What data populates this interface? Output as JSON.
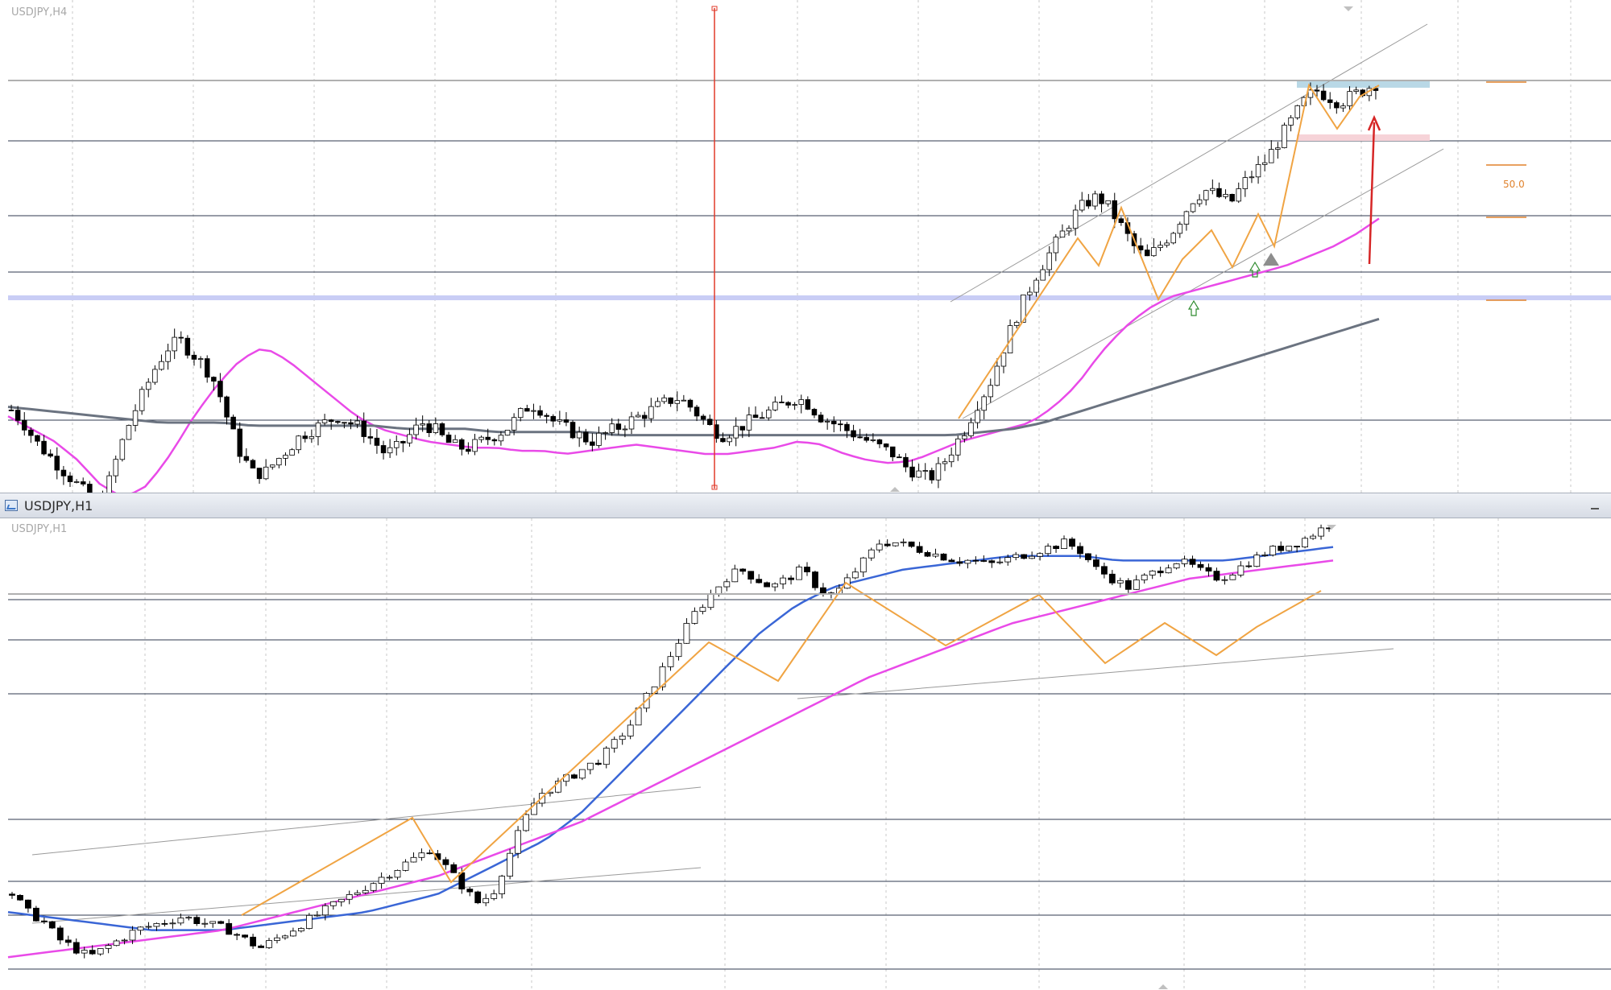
{
  "window": {
    "h4_chart_label": "USDJPY,H4",
    "h1_title": "USDJPY,H1",
    "h1_chart_label": "USDJPY,H1"
  },
  "fib": {
    "label_50": "50.0"
  },
  "colors": {
    "candle_up": "#ffffff",
    "candle_down": "#000000",
    "ma_fast": "#e94ae8",
    "ma_slow_h4": "#6b7380",
    "ma_blue_h1": "#3a66d6",
    "zigzag": "#f0a443",
    "vertical_marker": "#e03a2a",
    "arrow": "#d62626",
    "fib": "#e0822c",
    "support_band": "#c9cdf5",
    "resistance_band": "#b9d8e6",
    "target_band": "#f6d3d8",
    "channel": "#9a9a9a",
    "level": "#2f3a4f",
    "grid": "#c8c8c8",
    "entry_arrow": "#2e8b2e"
  },
  "icons": [
    "chart-window-icon",
    "minimize-icon",
    "up-arrow-icon",
    "triangle-marker-icon"
  ],
  "chart_data": [
    {
      "type": "candlestick",
      "title": "USDJPY,H4",
      "series": [
        {
          "name": "fast_ma",
          "shape": [
            0.52,
            0.48,
            0.44,
            0.38,
            0.3,
            0.26,
            0.3,
            0.4,
            0.52,
            0.62,
            0.7,
            0.74,
            0.7,
            0.64,
            0.58,
            0.52,
            0.48,
            0.46,
            0.44,
            0.43,
            0.42,
            0.42,
            0.41,
            0.41,
            0.4,
            0.41,
            0.42,
            0.43,
            0.42,
            0.41,
            0.4,
            0.4,
            0.41,
            0.42,
            0.44,
            0.43,
            0.4,
            0.38,
            0.37,
            0.38,
            0.41,
            0.44,
            0.46,
            0.48,
            0.5,
            0.55,
            0.62,
            0.72,
            0.8,
            0.86,
            0.9,
            0.92,
            0.94,
            0.96,
            0.98,
            1.0,
            1.03,
            1.06,
            1.1,
            1.15
          ]
        },
        {
          "name": "slow_ma",
          "shape": [
            0.55,
            0.54,
            0.53,
            0.52,
            0.51,
            0.5,
            0.5,
            0.5,
            0.49,
            0.49,
            0.49,
            0.49,
            0.49,
            0.48,
            0.48,
            0.48,
            0.47,
            0.47,
            0.47,
            0.47,
            0.46,
            0.46,
            0.46,
            0.46,
            0.46,
            0.46,
            0.46,
            0.46,
            0.46,
            0.46,
            0.46,
            0.46,
            0.47,
            0.48,
            0.5,
            0.53,
            0.56,
            0.59,
            0.62,
            0.65,
            0.68,
            0.71,
            0.74,
            0.77,
            0.8,
            0.83
          ]
        }
      ],
      "candle_shape": [
        0.54,
        0.5,
        0.44,
        0.4,
        0.36,
        0.32,
        0.28,
        0.24,
        0.3,
        0.42,
        0.52,
        0.6,
        0.68,
        0.74,
        0.76,
        0.72,
        0.68,
        0.62,
        0.5,
        0.4,
        0.34,
        0.34,
        0.38,
        0.42,
        0.46,
        0.48,
        0.5,
        0.52,
        0.5,
        0.48,
        0.44,
        0.4,
        0.42,
        0.46,
        0.5,
        0.48,
        0.44,
        0.42,
        0.42,
        0.44,
        0.46,
        0.48,
        0.52,
        0.56,
        0.54,
        0.5,
        0.48,
        0.46,
        0.44,
        0.46,
        0.48,
        0.5,
        0.52,
        0.54,
        0.56,
        0.58,
        0.56,
        0.52,
        0.48,
        0.46,
        0.48,
        0.5,
        0.52,
        0.54,
        0.56,
        0.58,
        0.56,
        0.52,
        0.5,
        0.48,
        0.46,
        0.44,
        0.42,
        0.4,
        0.36,
        0.34,
        0.32,
        0.36,
        0.42,
        0.48,
        0.56,
        0.62,
        0.72,
        0.82,
        0.9,
        0.98,
        1.04,
        1.1,
        1.16,
        1.2,
        1.22,
        1.18,
        1.12,
        1.06,
        1.02,
        1.06,
        1.1,
        1.16,
        1.22,
        1.24,
        1.22,
        1.2,
        1.26,
        1.3,
        1.34,
        1.4,
        1.46,
        1.52,
        1.56,
        1.54,
        1.52,
        1.54,
        1.56,
        1.58
      ]
    },
    {
      "type": "candlestick",
      "title": "USDJPY,H1",
      "series": [
        {
          "name": "blue_ma",
          "shape": [
            0.18,
            0.17,
            0.16,
            0.15,
            0.14,
            0.14,
            0.14,
            0.15,
            0.16,
            0.17,
            0.18,
            0.2,
            0.22,
            0.26,
            0.3,
            0.34,
            0.4,
            0.48,
            0.56,
            0.64,
            0.72,
            0.8,
            0.86,
            0.9,
            0.92,
            0.94,
            0.95,
            0.96,
            0.97,
            0.97,
            0.97,
            0.96,
            0.96,
            0.96,
            0.96,
            0.97,
            0.98,
            0.99
          ]
        },
        {
          "name": "pink_ma",
          "shape": [
            0.08,
            0.09,
            0.1,
            0.11,
            0.12,
            0.13,
            0.14,
            0.16,
            0.18,
            0.2,
            0.22,
            0.24,
            0.26,
            0.29,
            0.32,
            0.35,
            0.38,
            0.42,
            0.46,
            0.5,
            0.54,
            0.58,
            0.62,
            0.66,
            0.7,
            0.73,
            0.76,
            0.79,
            0.82,
            0.84,
            0.86,
            0.88,
            0.9,
            0.92,
            0.93,
            0.94,
            0.95,
            0.96
          ]
        }
      ],
      "candle_shape": [
        0.22,
        0.18,
        0.16,
        0.12,
        0.1,
        0.08,
        0.1,
        0.12,
        0.14,
        0.15,
        0.16,
        0.17,
        0.16,
        0.15,
        0.14,
        0.12,
        0.1,
        0.12,
        0.14,
        0.16,
        0.18,
        0.2,
        0.22,
        0.24,
        0.26,
        0.28,
        0.3,
        0.32,
        0.28,
        0.24,
        0.2,
        0.22,
        0.3,
        0.38,
        0.44,
        0.46,
        0.48,
        0.5,
        0.52,
        0.56,
        0.6,
        0.66,
        0.72,
        0.78,
        0.84,
        0.88,
        0.92,
        0.94,
        0.92,
        0.9,
        0.92,
        0.94,
        0.9,
        0.88,
        0.92,
        0.96,
        1.0,
        1.0,
        0.99,
        0.98,
        0.97,
        0.96,
        0.96,
        0.95,
        0.96,
        0.97,
        0.98,
        0.99,
        1.0,
        0.98,
        0.94,
        0.92,
        0.9,
        0.92,
        0.94,
        0.96,
        0.95,
        0.93,
        0.92,
        0.94,
        0.96,
        0.98,
        0.99,
        1.0,
        1.02,
        1.04
      ]
    }
  ]
}
